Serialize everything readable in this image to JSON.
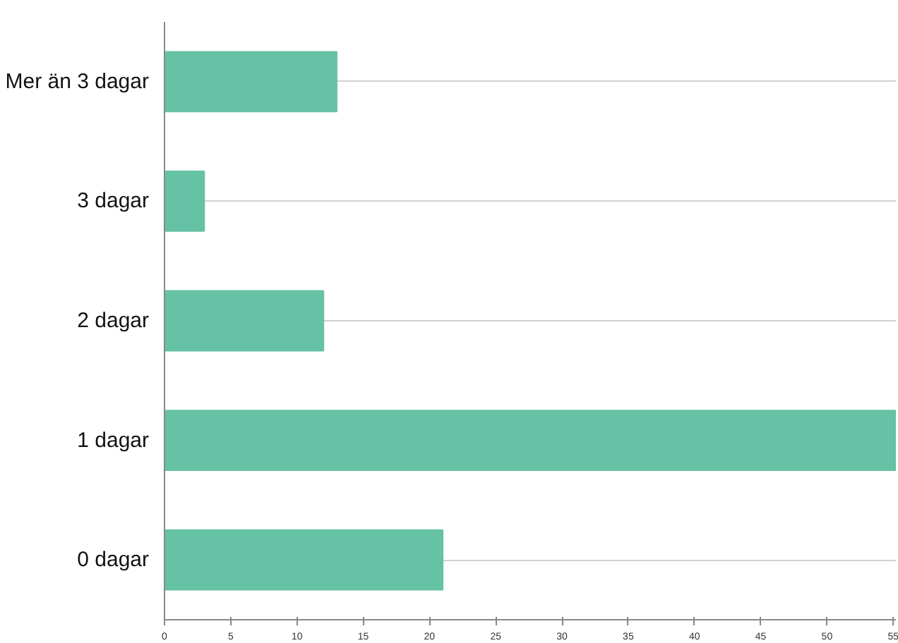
{
  "chart_data": {
    "type": "bar",
    "orientation": "horizontal",
    "categories": [
      "Mer än 3 dagar",
      "3 dagar",
      "2 dagar",
      "1 dagar",
      "0 dagar"
    ],
    "values": [
      13,
      3,
      12,
      55.2,
      21
    ],
    "color": "#66c2a5",
    "xlim": [
      0,
      55.2
    ],
    "xticks": [
      0,
      5,
      10,
      15,
      20,
      25,
      30,
      35,
      40,
      45,
      50,
      55
    ],
    "grid": "y"
  }
}
